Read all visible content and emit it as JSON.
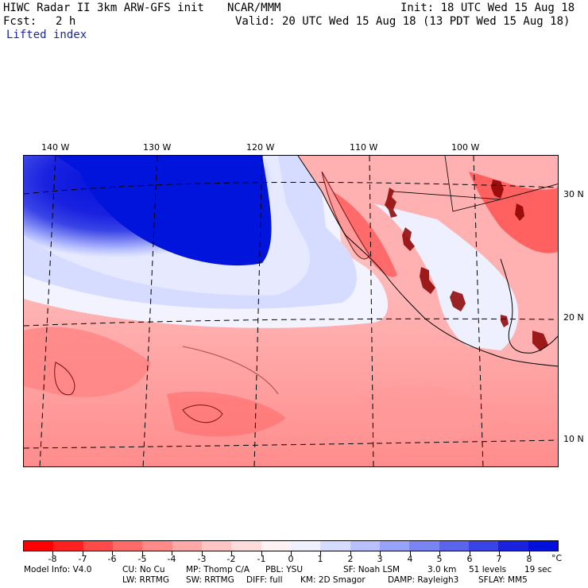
{
  "header": {
    "model": "HIWC Radar II 3km ARW-GFS init",
    "org": "NCAR/MMM",
    "init": "Init: 18 UTC Wed 15 Aug 18",
    "fcst_label": "Fcst:",
    "fcst_value": "2 h",
    "valid": "Valid: 20 UTC Wed 15 Aug 18 (13 PDT Wed 15 Aug 18)",
    "field": "Lifted index"
  },
  "map": {
    "lon_labels": [
      "140 W",
      "130 W",
      "120 W",
      "110 W",
      "100 W"
    ],
    "lat_labels": [
      "30 N",
      "20 N",
      "10 N"
    ]
  },
  "colorbar": {
    "ticks": [
      "-8",
      "-7",
      "-6",
      "-5",
      "-4",
      "-3",
      "-2",
      "-1",
      "0",
      "1",
      "2",
      "3",
      "4",
      "5",
      "6",
      "7",
      "8"
    ],
    "unit": "°C",
    "colors": [
      "#ff0000",
      "#ff2020",
      "#ff4a4a",
      "#ff6a6a",
      "#ff8a8a",
      "#ffa8a8",
      "#ffc4c4",
      "#ffdcdc",
      "#fff2f2",
      "#eef0ff",
      "#d6dcff",
      "#b8c0ff",
      "#98a2f8",
      "#7a84f2",
      "#5a64ec",
      "#3a44e6",
      "#1a22e0",
      "#0010dc"
    ]
  },
  "footer": {
    "line1": [
      "Model Info: V4.0",
      "CU: No Cu",
      "MP: Thomp C/A",
      "PBL: YSU",
      "SF: Noah LSM",
      "3.0 km",
      "51 levels",
      "19 sec"
    ],
    "line2": [
      "LW: RRTMG",
      "SW: RRTMG",
      "DIFF: full",
      "KM: 2D Smagor",
      "DAMP: Rayleigh3",
      "SFLAY: MM5"
    ]
  }
}
